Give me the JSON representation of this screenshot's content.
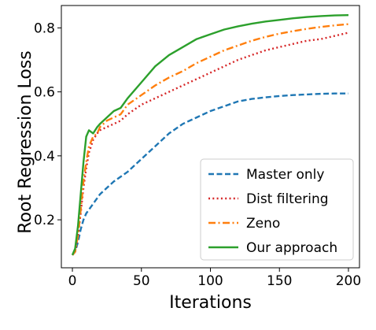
{
  "chart_data": {
    "type": "line",
    "xlabel": "Iterations",
    "ylabel": "Root Regression Loss",
    "xlim": [
      -8,
      208
    ],
    "ylim": [
      0.05,
      0.87
    ],
    "xticks": [
      0,
      50,
      100,
      150,
      200
    ],
    "xtick_labels": [
      "0",
      "50",
      "100",
      "150",
      "200"
    ],
    "yticks": [
      0.2,
      0.4,
      0.6,
      0.8
    ],
    "ytick_labels": [
      "0.2",
      "0.4",
      "0.6",
      "0.8"
    ],
    "grid": false,
    "legend_position": "lower-right",
    "series": [
      {
        "name": "Master only",
        "color": "#1f77b4",
        "dash": "dashed",
        "x": [
          0,
          2,
          4,
          6,
          8,
          10,
          15,
          20,
          25,
          30,
          40,
          50,
          60,
          70,
          80,
          90,
          100,
          110,
          120,
          130,
          140,
          150,
          160,
          170,
          180,
          190,
          200
        ],
        "y": [
          0.09,
          0.1,
          0.13,
          0.17,
          0.2,
          0.22,
          0.25,
          0.28,
          0.3,
          0.32,
          0.35,
          0.39,
          0.43,
          0.47,
          0.5,
          0.52,
          0.54,
          0.555,
          0.57,
          0.578,
          0.583,
          0.587,
          0.59,
          0.592,
          0.594,
          0.595,
          0.595
        ]
      },
      {
        "name": "Dist filtering",
        "color": "#d62728",
        "dash": "dotted",
        "x": [
          0,
          2,
          4,
          6,
          8,
          10,
          12,
          15,
          18,
          20,
          25,
          30,
          35,
          40,
          50,
          60,
          70,
          80,
          90,
          100,
          110,
          120,
          130,
          140,
          150,
          160,
          170,
          180,
          190,
          200
        ],
        "y": [
          0.09,
          0.1,
          0.15,
          0.22,
          0.3,
          0.36,
          0.41,
          0.45,
          0.47,
          0.48,
          0.49,
          0.5,
          0.51,
          0.53,
          0.56,
          0.58,
          0.6,
          0.62,
          0.64,
          0.66,
          0.68,
          0.7,
          0.715,
          0.73,
          0.74,
          0.75,
          0.76,
          0.765,
          0.775,
          0.785
        ]
      },
      {
        "name": "Zeno",
        "color": "#ff7f0e",
        "dash": "dashdot",
        "x": [
          0,
          2,
          4,
          6,
          8,
          10,
          12,
          15,
          18,
          20,
          25,
          30,
          35,
          40,
          50,
          60,
          70,
          80,
          90,
          100,
          110,
          120,
          130,
          140,
          150,
          160,
          170,
          180,
          190,
          200
        ],
        "y": [
          0.09,
          0.1,
          0.15,
          0.23,
          0.32,
          0.38,
          0.43,
          0.46,
          0.47,
          0.49,
          0.51,
          0.52,
          0.53,
          0.56,
          0.59,
          0.62,
          0.645,
          0.665,
          0.69,
          0.71,
          0.73,
          0.745,
          0.76,
          0.772,
          0.782,
          0.79,
          0.797,
          0.803,
          0.808,
          0.812
        ]
      },
      {
        "name": "Our approach",
        "color": "#2ca02c",
        "dash": "solid",
        "x": [
          0,
          2,
          4,
          6,
          8,
          10,
          12,
          15,
          18,
          20,
          25,
          30,
          35,
          40,
          50,
          60,
          70,
          80,
          90,
          100,
          110,
          120,
          130,
          140,
          150,
          160,
          170,
          180,
          190,
          200
        ],
        "y": [
          0.09,
          0.11,
          0.18,
          0.28,
          0.38,
          0.46,
          0.48,
          0.47,
          0.49,
          0.5,
          0.52,
          0.54,
          0.55,
          0.58,
          0.63,
          0.68,
          0.715,
          0.74,
          0.765,
          0.78,
          0.795,
          0.805,
          0.813,
          0.82,
          0.825,
          0.83,
          0.834,
          0.837,
          0.839,
          0.84
        ]
      }
    ]
  }
}
